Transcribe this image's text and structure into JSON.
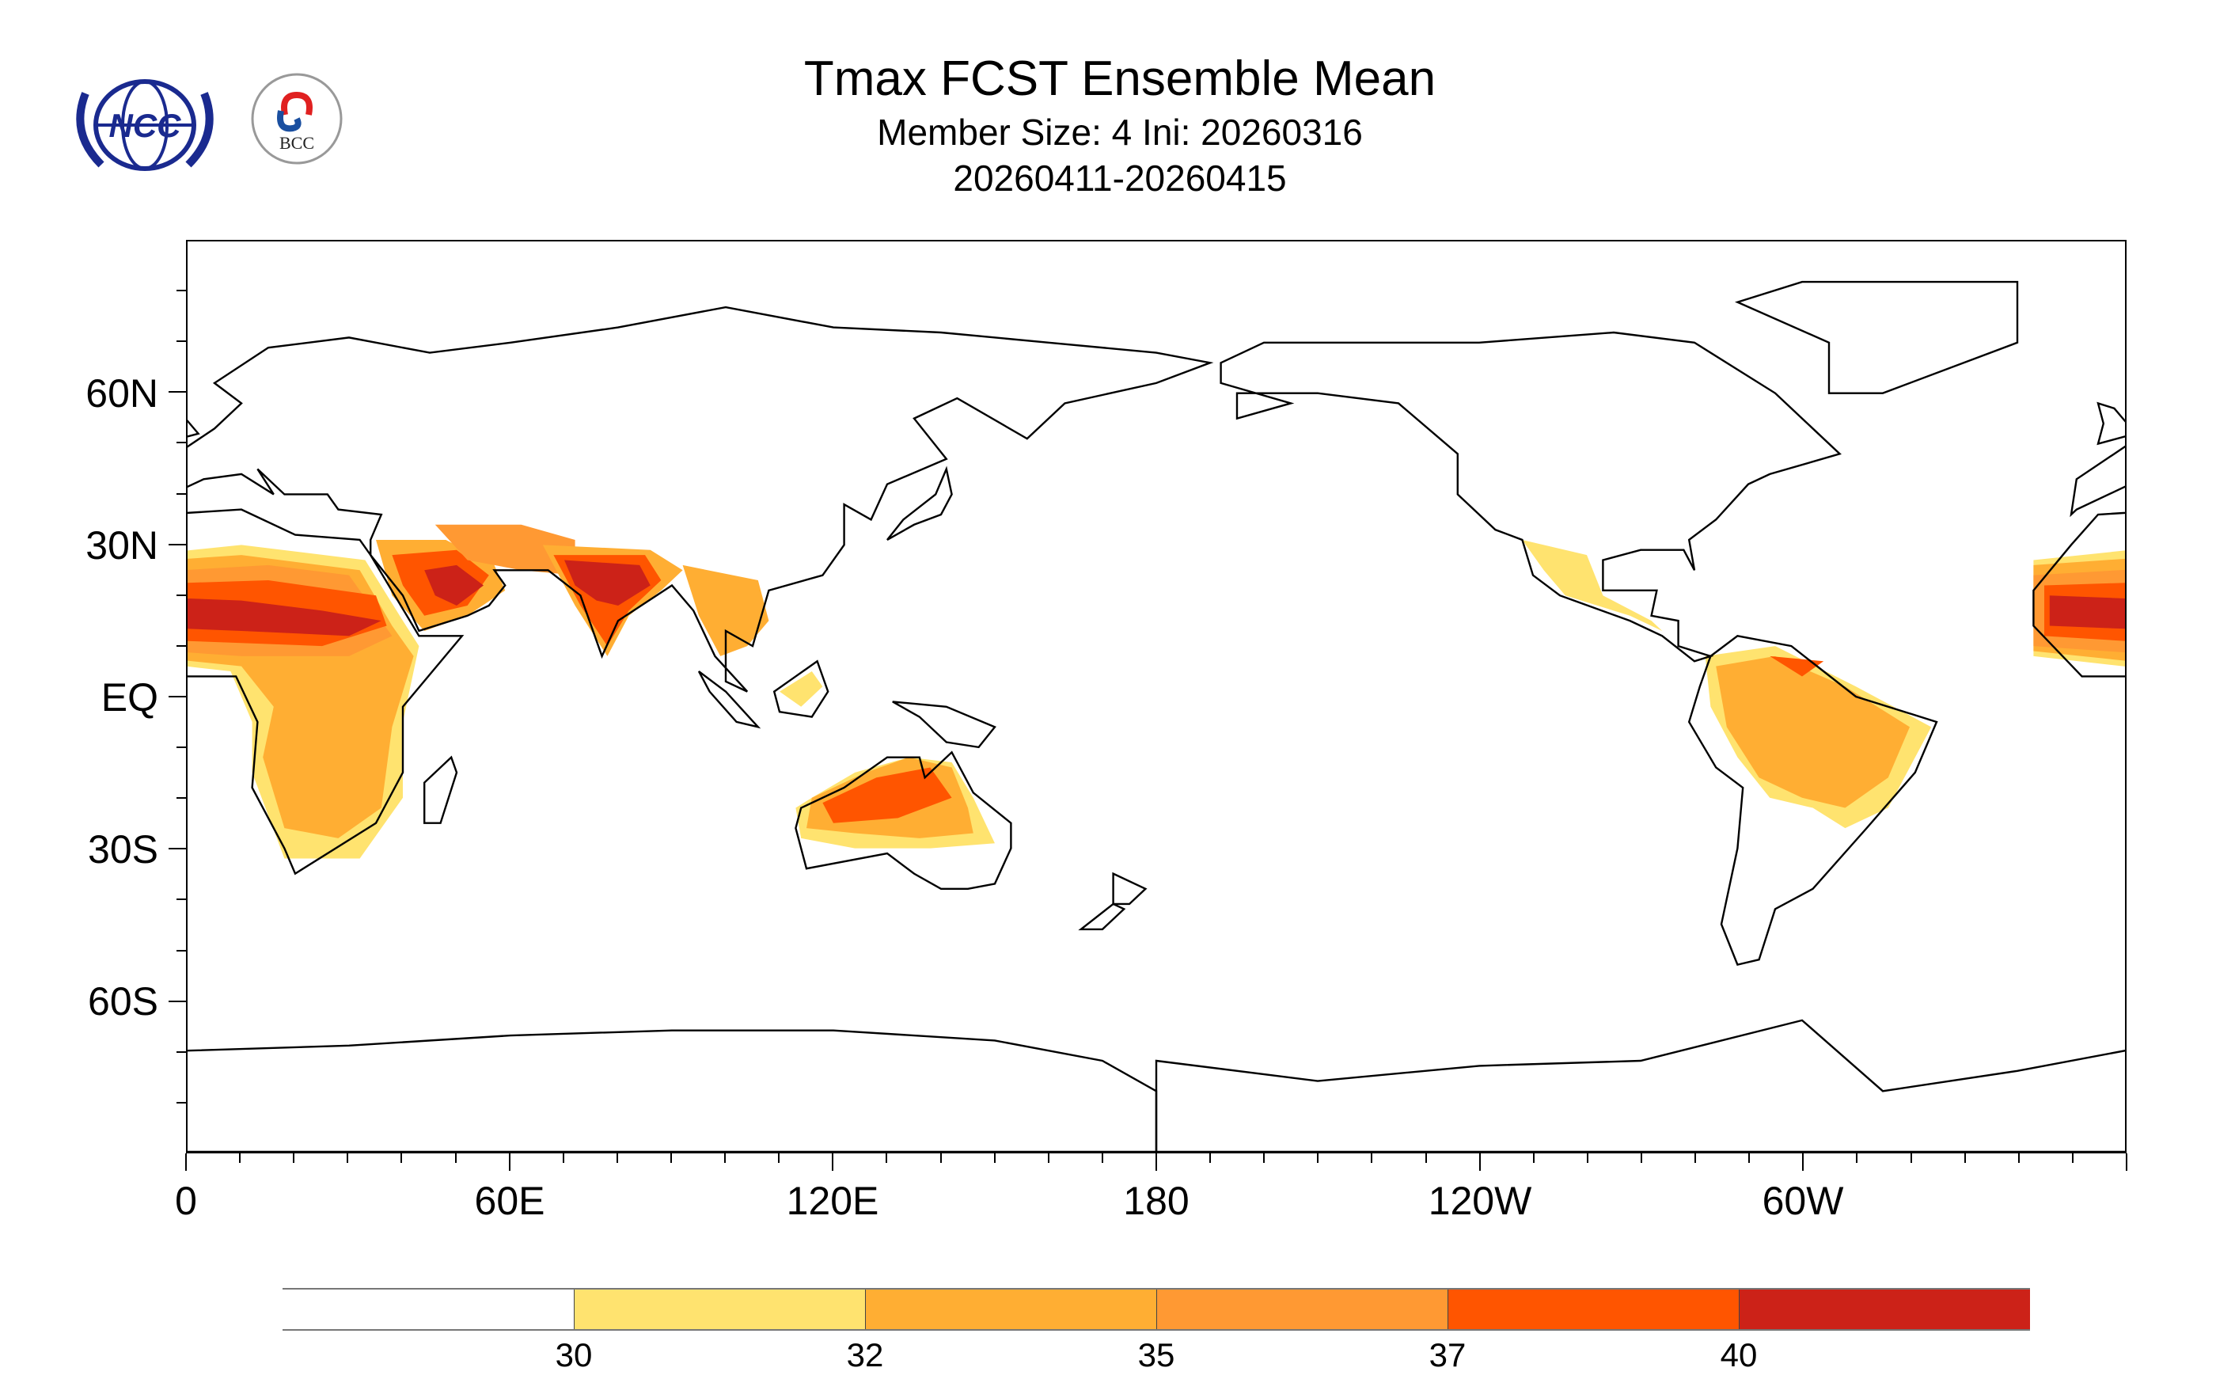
{
  "header": {
    "title": "Tmax FCST Ensemble Mean",
    "subtitle": "Member Size: 4  Ini: 20260316",
    "period": "20260411-20260415",
    "logos": [
      {
        "name": "NCC",
        "text": "NCC"
      },
      {
        "name": "BCC",
        "text": "BCC"
      }
    ]
  },
  "axes": {
    "y_labels": [
      "60N",
      "30N",
      "EQ",
      "30S",
      "60S"
    ],
    "x_labels": [
      "0",
      "60E",
      "120E",
      "180",
      "120W",
      "60W"
    ]
  },
  "colorbar": {
    "levels": [
      "30",
      "32",
      "35",
      "37",
      "40"
    ],
    "colors": [
      "#ffffff",
      "#ffe36f",
      "#ffae33",
      "#ff9933",
      "#ff5500",
      "#cc2218"
    ]
  },
  "chart_data": {
    "type": "heatmap",
    "title": "Tmax FCST Ensemble Mean",
    "subtitle": "Member Size: 4  Ini: 20260316 / 20260411-20260415",
    "xlim": [
      0,
      360
    ],
    "ylim": [
      -90,
      90
    ],
    "x_ticks": [
      "0",
      "60E",
      "120E",
      "180",
      "120W",
      "60W"
    ],
    "y_ticks": [
      "60N",
      "30N",
      "EQ",
      "30S",
      "60S"
    ],
    "contour_levels": [
      30,
      32,
      35,
      37,
      40
    ],
    "legend_placement": "bottom"
  }
}
